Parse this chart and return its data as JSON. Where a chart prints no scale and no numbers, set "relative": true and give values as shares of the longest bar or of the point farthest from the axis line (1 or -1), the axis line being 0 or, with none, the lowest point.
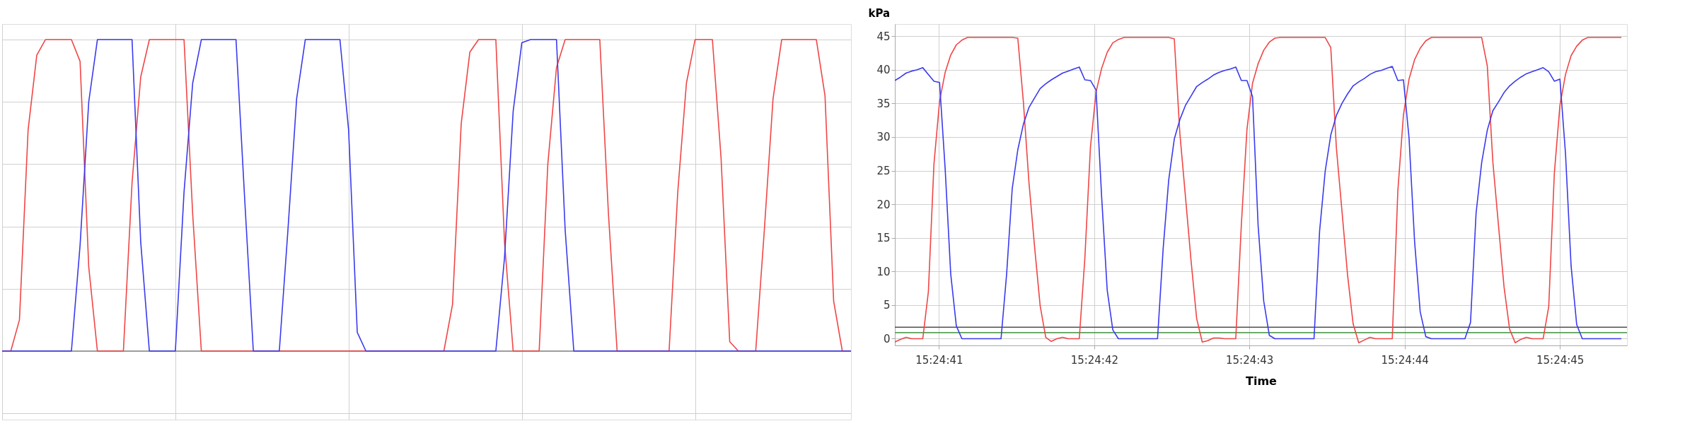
{
  "chart_data": [
    {
      "type": "line",
      "relative": true,
      "grid": true,
      "categories": [
        null,
        null,
        null,
        null,
        null,
        null,
        null,
        null,
        null,
        null,
        null,
        null,
        null,
        null,
        null,
        null,
        null,
        null,
        null,
        null,
        null,
        null,
        null,
        null,
        null,
        null,
        null,
        null,
        null,
        null,
        null,
        null,
        null,
        null,
        null,
        null,
        null,
        null,
        null,
        null,
        null,
        null,
        null,
        null,
        null,
        null,
        null,
        null,
        null,
        null,
        null,
        null,
        null,
        null,
        null,
        null,
        null,
        null,
        null,
        null,
        null,
        null,
        null,
        null,
        null,
        null,
        null,
        null,
        null,
        null,
        null,
        null,
        null,
        null,
        null,
        null,
        null,
        null,
        null,
        null,
        null,
        null,
        null,
        null,
        null,
        null,
        null,
        null,
        null,
        null,
        null,
        null,
        null,
        null,
        null,
        null,
        null,
        null,
        null
      ],
      "series": [
        {
          "color": "#f04646",
          "values": [
            0,
            0,
            0.1,
            0.71,
            0.95,
            1,
            1,
            1,
            1,
            0.93,
            0.27,
            0,
            0,
            0,
            0,
            0.54,
            0.88,
            1,
            1,
            1,
            1,
            1,
            0.44,
            0,
            0,
            0,
            0,
            0,
            0,
            0,
            0,
            0,
            0,
            0,
            0,
            0,
            0,
            0,
            0,
            0,
            0,
            0,
            0,
            0,
            0,
            0,
            0,
            0,
            0,
            0,
            0,
            0,
            0.15,
            0.73,
            0.96,
            1,
            1,
            1,
            0.35,
            0,
            0,
            0,
            0,
            0.6,
            0.91,
            1,
            1,
            1,
            1,
            1,
            0.44,
            0,
            0,
            0,
            0,
            0,
            0,
            0,
            0.51,
            0.86,
            1,
            1,
            1,
            0.62,
            0.03,
            0,
            0,
            0,
            0.39,
            0.81,
            1,
            1,
            1,
            1,
            1,
            0.82,
            0.16,
            0,
            0
          ]
        },
        {
          "color": "#3a3aee",
          "values": [
            0,
            0,
            0,
            0,
            0,
            0,
            0,
            0,
            0,
            0.34,
            0.8,
            1,
            1,
            1,
            1,
            1,
            0.35,
            0,
            0,
            0,
            0,
            0.51,
            0.86,
            1,
            1,
            1,
            1,
            1,
            0.49,
            0,
            0,
            0,
            0,
            0.39,
            0.81,
            1,
            1,
            1,
            1,
            1,
            0.71,
            0.06,
            0,
            0,
            0,
            0,
            0,
            0,
            0,
            0,
            0,
            0,
            0,
            0,
            0,
            0,
            0,
            0,
            0.3,
            0.77,
            0.99,
            1,
            1,
            1,
            1,
            0.39,
            0,
            0,
            0,
            0,
            0,
            0,
            0,
            0,
            0,
            0,
            0,
            0,
            0,
            0,
            0,
            0,
            0,
            0,
            0,
            0,
            0,
            0,
            0,
            0,
            0,
            0,
            0,
            0,
            0,
            0,
            0,
            0,
            0
          ]
        }
      ]
    },
    {
      "type": "line",
      "ylabel": "kPa",
      "xlabel": "Time",
      "grid": true,
      "ref_lines": [
        {
          "axis": "y",
          "value": 1.7,
          "color": "#505050"
        },
        {
          "axis": "y",
          "value": 0.9,
          "color": "#5aa05a"
        }
      ],
      "xlim": [
        15.41131,
        15.41262
      ],
      "ylim": [
        -1,
        46.8
      ],
      "yticks": [
        0,
        5,
        10,
        15,
        20,
        25,
        30,
        35,
        40,
        45
      ],
      "xticks": [
        {
          "value": 15.4113889,
          "label": "15:24:41"
        },
        {
          "value": 15.4116667,
          "label": "15:24:42"
        },
        {
          "value": 15.4119444,
          "label": "15:24:43"
        },
        {
          "value": 15.4122222,
          "label": "15:24:44"
        },
        {
          "value": 15.4125,
          "label": "15:24:45"
        }
      ],
      "x": [
        15.41131,
        15.41132,
        15.41133,
        15.41134,
        15.41135,
        15.41136,
        15.41137,
        15.41138,
        15.41139,
        15.4114,
        15.41141,
        15.41142,
        15.41143,
        15.41144,
        15.41145,
        15.41146,
        15.41147,
        15.41148,
        15.41149,
        15.4115,
        15.41151,
        15.41152,
        15.41153,
        15.41154,
        15.41155,
        15.41156,
        15.41157,
        15.41158,
        15.41159,
        15.4116,
        15.41161,
        15.41162,
        15.41163,
        15.41164,
        15.41165,
        15.41166,
        15.41167,
        15.41168,
        15.41169,
        15.4117,
        15.41171,
        15.41172,
        15.41173,
        15.41174,
        15.41175,
        15.41176,
        15.41177,
        15.41178,
        15.41179,
        15.4118,
        15.41181,
        15.41182,
        15.41183,
        15.41184,
        15.41185,
        15.41186,
        15.41187,
        15.41188,
        15.41189,
        15.4119,
        15.41191,
        15.41192,
        15.41193,
        15.41194,
        15.41195,
        15.41196,
        15.41197,
        15.41198,
        15.41199,
        15.412,
        15.41201,
        15.41202,
        15.41203,
        15.41204,
        15.41205,
        15.41206,
        15.41207,
        15.41208,
        15.41209,
        15.4121,
        15.41211,
        15.41212,
        15.41213,
        15.41214,
        15.41215,
        15.41216,
        15.41217,
        15.41218,
        15.41219,
        15.4122,
        15.41221,
        15.41222,
        15.41223,
        15.41224,
        15.41225,
        15.41226,
        15.41227,
        15.41228,
        15.41229,
        15.4123,
        15.41231,
        15.41232,
        15.41233,
        15.41234,
        15.41235,
        15.41236,
        15.41237,
        15.41238,
        15.41239,
        15.4124,
        15.41241,
        15.41242,
        15.41243,
        15.41244,
        15.41245,
        15.41246,
        15.41247,
        15.41248,
        15.41249,
        15.4125,
        15.41251,
        15.41252,
        15.41253,
        15.41254,
        15.41255,
        15.41256,
        15.41257,
        15.41258,
        15.41259,
        15.4126,
        15.41261
      ],
      "series": [
        {
          "color": "#f04646",
          "values": [
            -0.5,
            -0.1,
            0.2,
            0,
            0,
            0,
            7,
            26,
            35.3,
            39.6,
            42.2,
            43.7,
            44.4,
            44.8,
            44.8,
            44.8,
            44.8,
            44.8,
            44.8,
            44.8,
            44.8,
            44.8,
            44.7,
            35.2,
            23.2,
            13.7,
            4.9,
            0.2,
            -0.4,
            0,
            0.2,
            0,
            0,
            0,
            12,
            28.5,
            36.7,
            40.2,
            42.6,
            44,
            44.5,
            44.8,
            44.8,
            44.8,
            44.8,
            44.8,
            44.8,
            44.8,
            44.8,
            44.8,
            44.6,
            30.5,
            21.1,
            11.6,
            3,
            -0.5,
            -0.3,
            0.1,
            0.1,
            0,
            0,
            0,
            17,
            31.1,
            38,
            40.9,
            42.9,
            44.1,
            44.7,
            44.8,
            44.8,
            44.8,
            44.8,
            44.8,
            44.8,
            44.8,
            44.8,
            44.8,
            43.3,
            28.4,
            19,
            9.5,
            2.2,
            -0.6,
            -0.2,
            0.2,
            0,
            0,
            0,
            0,
            22,
            33.3,
            38.6,
            41.5,
            43.2,
            44.3,
            44.8,
            44.8,
            44.8,
            44.8,
            44.8,
            44.8,
            44.8,
            44.8,
            44.8,
            44.8,
            40.6,
            26.3,
            16.9,
            7.7,
            1.4,
            -0.6,
            -0.1,
            0.2,
            0,
            0,
            0,
            4.8,
            24.6,
            34.7,
            39.3,
            42.1,
            43.5,
            44.4,
            44.8,
            44.8,
            44.8,
            44.8,
            44.8,
            44.8,
            44.8
          ]
        },
        {
          "color": "#3a3aee",
          "values": [
            38.4,
            38.9,
            39.5,
            39.8,
            40,
            40.3,
            39.3,
            38.3,
            38.1,
            25.3,
            9.6,
            1.9,
            0,
            0,
            0,
            0,
            0,
            0,
            0,
            0,
            9.6,
            22.3,
            28.1,
            31.9,
            34.4,
            35.8,
            37.2,
            37.9,
            38.5,
            39,
            39.5,
            39.8,
            40.1,
            40.4,
            38.5,
            38.4,
            37,
            21.1,
            7.2,
            1.3,
            0,
            0,
            0,
            0,
            0,
            0,
            0,
            0,
            13.3,
            23.6,
            29.7,
            32.6,
            34.7,
            36.1,
            37.5,
            38.1,
            38.6,
            39.2,
            39.6,
            39.9,
            40.1,
            40.4,
            38.4,
            38.4,
            36,
            16.8,
            5.6,
            0.5,
            0,
            0,
            0,
            0,
            0,
            0,
            0,
            0,
            16,
            24.9,
            30.3,
            33.2,
            35,
            36.4,
            37.6,
            38.2,
            38.7,
            39.3,
            39.7,
            39.9,
            40.2,
            40.5,
            38.4,
            38.5,
            29.9,
            14.4,
            4,
            0.3,
            0,
            0,
            0,
            0,
            0,
            0,
            0,
            2.4,
            18.7,
            26.2,
            31,
            33.9,
            35.2,
            36.6,
            37.6,
            38.3,
            38.9,
            39.4,
            39.7,
            40,
            40.3,
            39.7,
            38.3,
            38.6,
            27.5,
            10.8,
            2.1,
            0,
            0,
            0,
            0,
            0,
            0,
            0,
            0
          ]
        }
      ]
    }
  ]
}
